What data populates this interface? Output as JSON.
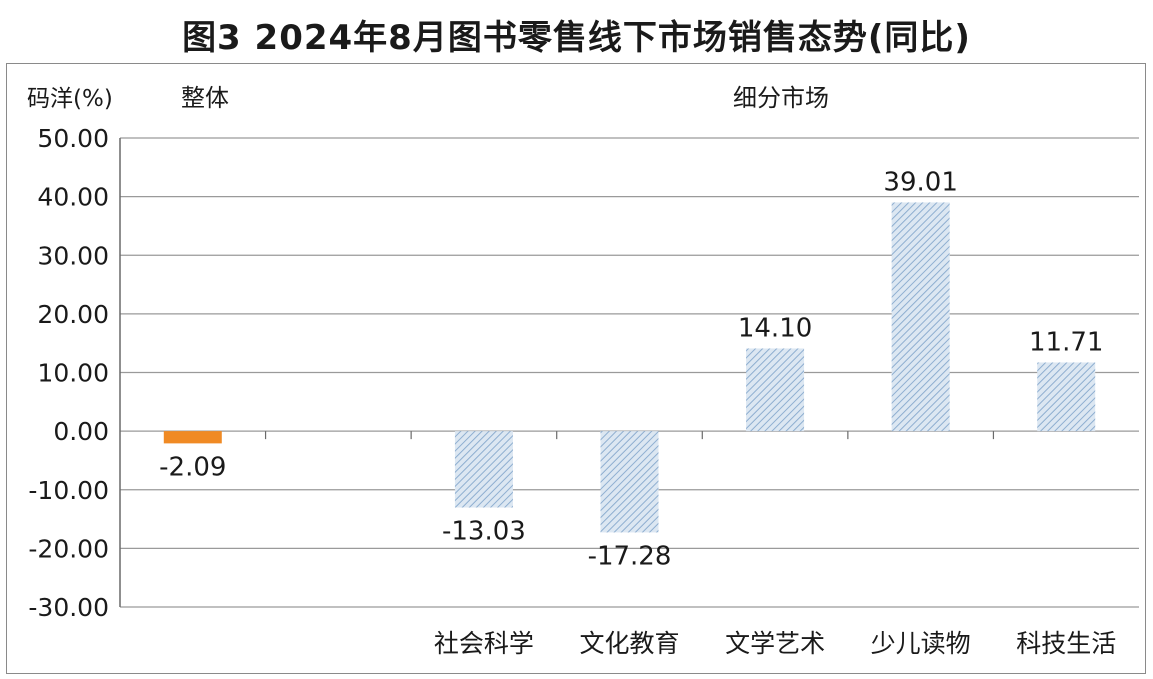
{
  "title": "图3  2024年8月图书零售线下市场销售态势(同比)",
  "ylabel": "码洋(%)",
  "group_labels": {
    "overall": "整体",
    "segments": "细分市场"
  },
  "colors": {
    "overall": "#f08a24",
    "segment_hatch": "#9cb8d6",
    "grid": "#9a9a9a"
  },
  "chart_data": {
    "type": "bar",
    "title": "图3  2024年8月图书零售线下市场销售态势(同比)",
    "ylabel": "码洋(%)",
    "xlabel": "",
    "ylim": [
      -30,
      50
    ],
    "yticks": [
      50,
      40,
      30,
      20,
      10,
      0,
      -10,
      -20,
      -30
    ],
    "ytick_labels": [
      "50.00",
      "40.00",
      "30.00",
      "20.00",
      "10.00",
      "0.00",
      "-10.00",
      "-20.00",
      "-30.00"
    ],
    "grid": true,
    "categories": [
      "",
      "",
      "社会科学",
      "文化教育",
      "文学艺术",
      "少儿读物",
      "科技生活"
    ],
    "values": [
      -2.09,
      null,
      -13.03,
      -17.28,
      14.1,
      39.01,
      11.71
    ],
    "value_labels": [
      "-2.09",
      "",
      "-13.03",
      "-17.28",
      "14.10",
      "39.01",
      "11.71"
    ],
    "groups": [
      "overall",
      "none",
      "segment",
      "segment",
      "segment",
      "segment",
      "segment"
    ]
  }
}
